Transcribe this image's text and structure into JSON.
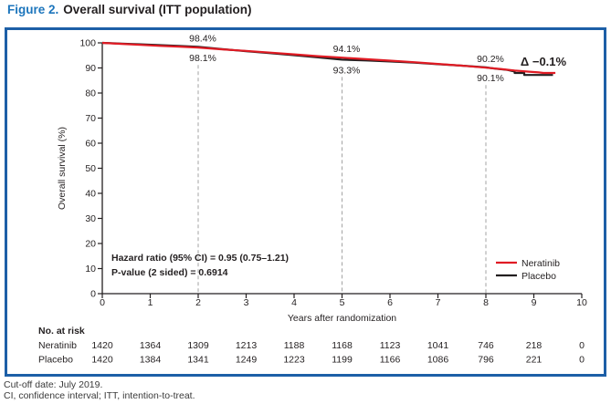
{
  "title": {
    "prefix": "Figure 2.",
    "rest": "Overall survival (ITT population)"
  },
  "footer": {
    "line1": "Cut-off date: July 2019.",
    "line2": "CI, confidence interval; ITT, intention-to-treat."
  },
  "colors": {
    "title_blue": "#1c75bc",
    "border_blue": "#1d5fa7",
    "neratinib_red": "#e01b24",
    "placebo_black": "#231f20",
    "dashed_grey": "#a3a3a3"
  },
  "chart_data": {
    "type": "line",
    "subtype": "kaplan-meier",
    "xlabel": "Years after randomization",
    "ylabel": "Overall survival (%)",
    "xlim": [
      0,
      10
    ],
    "xticks": [
      0,
      1,
      2,
      3,
      4,
      5,
      6,
      7,
      8,
      9,
      10
    ],
    "ylim": [
      0,
      100
    ],
    "yticks": [
      0,
      10,
      20,
      30,
      40,
      50,
      60,
      70,
      80,
      90,
      100
    ],
    "grid": false,
    "legend_position": "lower right",
    "legend": [
      {
        "label": "Neratinib",
        "color": "#e01b24"
      },
      {
        "label": "Placebo",
        "color": "#231f20"
      }
    ],
    "series": [
      {
        "name": "Placebo",
        "color": "#231f20",
        "points": [
          [
            0,
            100
          ],
          [
            0.4,
            99.7
          ],
          [
            0.8,
            99.4
          ],
          [
            1.2,
            99.1
          ],
          [
            1.6,
            98.8
          ],
          [
            2,
            98.4
          ],
          [
            2.5,
            97.5
          ],
          [
            3,
            96.7
          ],
          [
            3.5,
            95.9
          ],
          [
            4,
            95.1
          ],
          [
            4.5,
            94.2
          ],
          [
            5,
            93.3
          ],
          [
            5.5,
            93.0
          ],
          [
            6,
            92.6
          ],
          [
            6.5,
            92.1
          ],
          [
            7,
            91.5
          ],
          [
            7.5,
            90.9
          ],
          [
            8,
            90.2
          ],
          [
            8.2,
            89.7
          ],
          [
            8.45,
            89.2
          ],
          [
            8.6,
            88.6
          ],
          [
            8.6,
            88.0
          ],
          [
            8.8,
            88.0
          ],
          [
            8.8,
            87.2
          ],
          [
            9.4,
            87.2
          ]
        ]
      },
      {
        "name": "Neratinib",
        "color": "#e01b24",
        "points": [
          [
            0,
            100
          ],
          [
            0.4,
            99.6
          ],
          [
            0.8,
            99.2
          ],
          [
            1.2,
            98.8
          ],
          [
            1.6,
            98.5
          ],
          [
            2,
            98.1
          ],
          [
            2.5,
            97.4
          ],
          [
            3,
            96.8
          ],
          [
            3.5,
            96.1
          ],
          [
            4,
            95.4
          ],
          [
            4.5,
            94.7
          ],
          [
            5,
            94.1
          ],
          [
            5.5,
            93.5
          ],
          [
            6,
            92.9
          ],
          [
            6.5,
            92.3
          ],
          [
            7,
            91.6
          ],
          [
            7.5,
            90.9
          ],
          [
            8,
            90.1
          ],
          [
            8.3,
            89.6
          ],
          [
            8.6,
            89.0
          ],
          [
            8.9,
            88.5
          ],
          [
            9.1,
            88.2
          ],
          [
            9.2,
            88.0
          ],
          [
            9.45,
            88.0
          ]
        ]
      }
    ],
    "annotations": [
      {
        "year": 2,
        "side": "above",
        "text": "98.4%",
        "series": "Placebo",
        "value": 98.4
      },
      {
        "year": 2,
        "side": "below",
        "text": "98.1%",
        "series": "Neratinib",
        "value": 98.1
      },
      {
        "year": 5,
        "side": "above",
        "text": "94.1%",
        "series": "Neratinib",
        "value": 94.1
      },
      {
        "year": 5,
        "side": "below",
        "text": "93.3%",
        "series": "Placebo",
        "value": 93.3
      },
      {
        "year": 8,
        "side": "above",
        "text": "90.2%",
        "series": "Placebo",
        "value": 90.2
      },
      {
        "year": 8,
        "side": "below",
        "text": "90.1%",
        "series": "Neratinib",
        "value": 90.1
      }
    ],
    "delta_label": "Δ −0.1%",
    "dashed_years": [
      2,
      5,
      8
    ],
    "stats_box": [
      "Hazard ratio (95% CI) = 0.95 (0.75–1.21)",
      "P-value (2 sided) = 0.6914"
    ],
    "risk_table": {
      "header": "No. at risk",
      "rows": [
        {
          "name": "Neratinib",
          "values": [
            1420,
            1364,
            1309,
            1213,
            1188,
            1168,
            1123,
            1041,
            746,
            218,
            0
          ]
        },
        {
          "name": "Placebo",
          "values": [
            1420,
            1384,
            1341,
            1249,
            1223,
            1199,
            1166,
            1086,
            796,
            221,
            0
          ]
        }
      ]
    }
  }
}
